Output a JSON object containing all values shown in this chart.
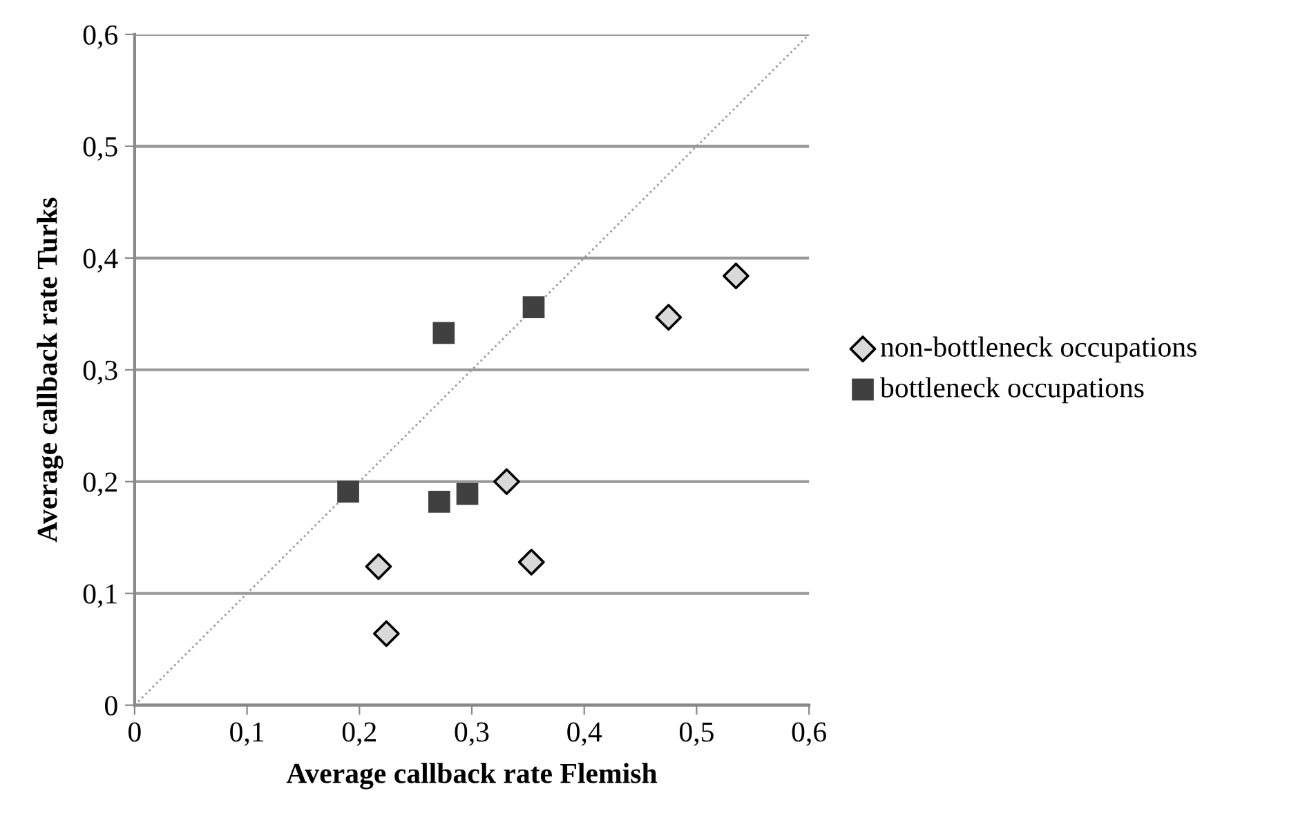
{
  "chart_data": {
    "type": "scatter",
    "xlabel": "Average callback rate Flemish",
    "ylabel": "Average callback rate Turks",
    "xlim": [
      0,
      0.6
    ],
    "ylim": [
      0,
      0.6
    ],
    "xticks": [
      {
        "value": 0,
        "label": "0"
      },
      {
        "value": 0.1,
        "label": "0,1"
      },
      {
        "value": 0.2,
        "label": "0,2"
      },
      {
        "value": 0.3,
        "label": "0,3"
      },
      {
        "value": 0.4,
        "label": "0,4"
      },
      {
        "value": 0.5,
        "label": "0,5"
      },
      {
        "value": 0.6,
        "label": "0,6"
      }
    ],
    "yticks": [
      {
        "value": 0,
        "label": "0"
      },
      {
        "value": 0.1,
        "label": "0,1"
      },
      {
        "value": 0.2,
        "label": "0,2"
      },
      {
        "value": 0.3,
        "label": "0,3"
      },
      {
        "value": 0.4,
        "label": "0,4"
      },
      {
        "value": 0.5,
        "label": "0,5"
      },
      {
        "value": 0.6,
        "label": "0,6"
      }
    ],
    "grid": "y",
    "legend": "right",
    "series": [
      {
        "name": "non-bottleneck occupations",
        "color": "#d9d9d9",
        "marker": "diamond",
        "x": [
          0.535,
          0.475,
          0.331,
          0.217,
          0.353,
          0.224
        ],
        "values": [
          0.384,
          0.347,
          0.2,
          0.124,
          0.128,
          0.064
        ]
      },
      {
        "name": "bottleneck occupations",
        "color": "#404040",
        "marker": "square",
        "x": [
          0.19,
          0.275,
          0.355,
          0.271,
          0.296
        ],
        "values": [
          0.191,
          0.333,
          0.356,
          0.182,
          0.189
        ]
      },
      {
        "type": "line",
        "color": "#999999",
        "line_style": "dotted",
        "marker": "none",
        "x": [
          0,
          0.6
        ],
        "values": [
          0,
          0.6
        ]
      }
    ]
  }
}
